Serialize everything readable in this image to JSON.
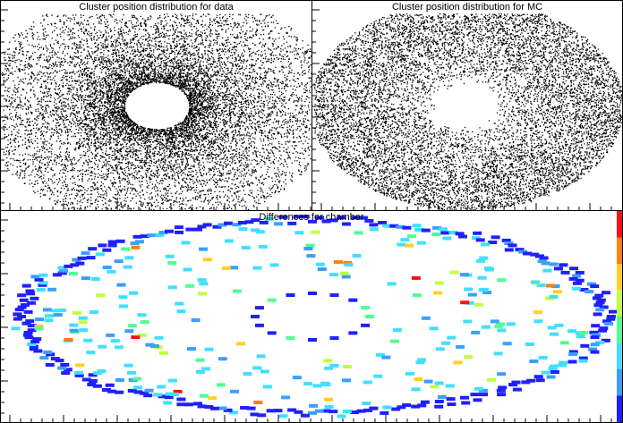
{
  "chart_data": [
    {
      "type": "scatter",
      "title": "Cluster position distribution for data",
      "description": "2D cluster hit positions forming an annulus around an empty central hole",
      "x": [
        -1,
        1
      ],
      "y": [
        -1,
        1
      ],
      "density": "medium",
      "inner_hole": {
        "rx": 0.2,
        "ry": 0.2
      },
      "outer_edge": {
        "rx": 1.0,
        "ry": 1.0
      },
      "color": "#000000"
    },
    {
      "type": "scatter",
      "title": "Cluster position distribution for MC",
      "description": "2D cluster hit positions, dense filled ellipse with a central hole",
      "x": [
        -1,
        1
      ],
      "y": [
        -1,
        1
      ],
      "density": "high",
      "inner_hole": {
        "rx": 0.2,
        "ry": 0.2
      },
      "outer_edge": {
        "rx": 1.0,
        "ry": 1.0
      },
      "color": "#000000"
    },
    {
      "type": "heatmap",
      "title": "Differences for chamber",
      "description": "Bin-by-bin differences, mostly along outer ring and inner ring",
      "palette": [
        "#2020ff",
        "#3aa0ff",
        "#40e0ff",
        "#50ff90",
        "#c0ff40",
        "#ffd020",
        "#ff8010",
        "#ff1010"
      ],
      "outer_ring_color": "#2020ff",
      "inner_ring_color": "#2020ff"
    }
  ]
}
